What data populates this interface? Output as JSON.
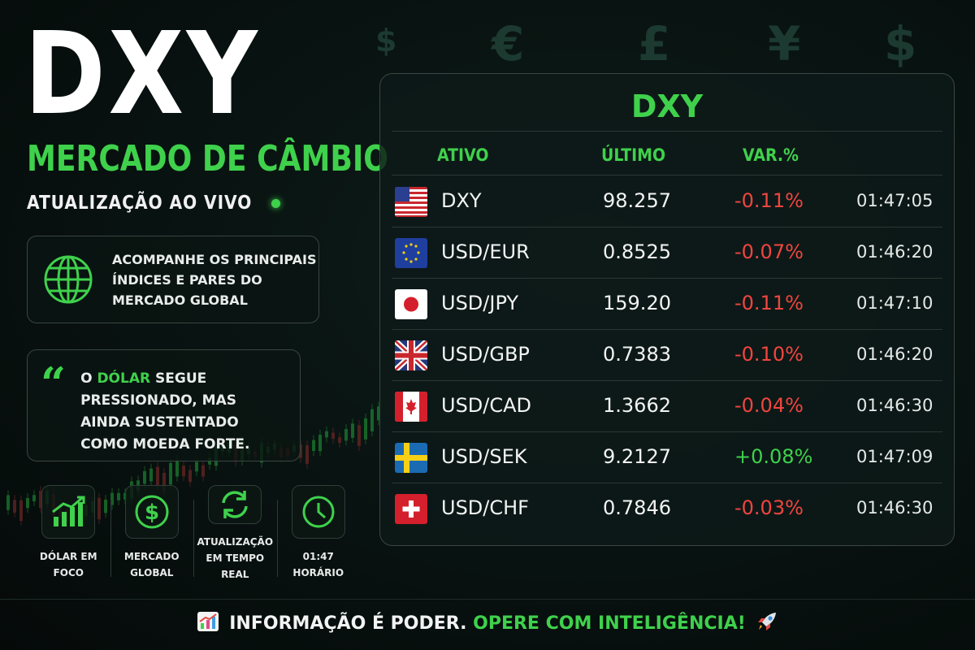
{
  "background_symbols": [
    "$",
    "€",
    "£",
    "¥",
    "$"
  ],
  "header": {
    "title": "DXY",
    "subtitle": "MERCADO DE CÂMBIO",
    "live_label": "ATUALIZAÇÃO AO VIVO"
  },
  "info_box": {
    "icon": "globe-icon",
    "lines": [
      "ACOMPANHE OS PRINCIPAIS",
      "ÍNDICES E PARES DO",
      "MERCADO GLOBAL"
    ]
  },
  "quote_box": {
    "pre": "O ",
    "highlight": "DÓLAR",
    "post": " SEGUE",
    "lines": [
      "PRESSIONADO, MAS",
      "AINDA SUSTENTADO",
      "COMO MOEDA FORTE."
    ]
  },
  "features": [
    {
      "icon": "chart-up-icon",
      "label": "DÓLAR EM FOCO"
    },
    {
      "icon": "dollar-circle-icon",
      "label": "MERCADO\nGLOBAL"
    },
    {
      "icon": "refresh-icon",
      "label": "ATUALIZAÇÃO\nEM TEMPO REAL"
    },
    {
      "icon": "clock-icon",
      "label": "01:47\nHORÁRIO"
    }
  ],
  "table": {
    "title": "DXY",
    "headers": {
      "asset": "ATIVO",
      "last": "ÚLTIMO",
      "change": "VAR.%"
    },
    "rows": [
      {
        "flag": "us-flag-icon",
        "symbol": "DXY",
        "last": "98.257",
        "change": "-0.11%",
        "time": "01:47:05"
      },
      {
        "flag": "eu-flag-icon",
        "symbol": "USD/EUR",
        "last": "0.8525",
        "change": "-0.07%",
        "time": "01:46:20"
      },
      {
        "flag": "jp-flag-icon",
        "symbol": "USD/JPY",
        "last": "159.20",
        "change": "-0.11%",
        "time": "01:47:10"
      },
      {
        "flag": "gb-flag-icon",
        "symbol": "USD/GBP",
        "last": "0.7383",
        "change": "-0.10%",
        "time": "01:46:20"
      },
      {
        "flag": "ca-flag-icon",
        "symbol": "USD/CAD",
        "last": "1.3662",
        "change": "-0.04%",
        "time": "01:46:30"
      },
      {
        "flag": "se-flag-icon",
        "symbol": "USD/SEK",
        "last": "9.2127",
        "change": "+0.08%",
        "time": "01:47:09"
      },
      {
        "flag": "ch-flag-icon",
        "symbol": "USD/CHF",
        "last": "0.7846",
        "change": "-0.03%",
        "time": "01:46:30"
      }
    ]
  },
  "footer": {
    "left_icon": "chart-emoji-icon",
    "white_text": "INFORMAÇÃO É PODER.",
    "green_text": "OPERE COM INTELIGÊNCIA!",
    "right_icon": "rocket-icon"
  },
  "colors": {
    "accent": "#3fd14c",
    "negative": "#f0453f",
    "background": "#081210"
  }
}
